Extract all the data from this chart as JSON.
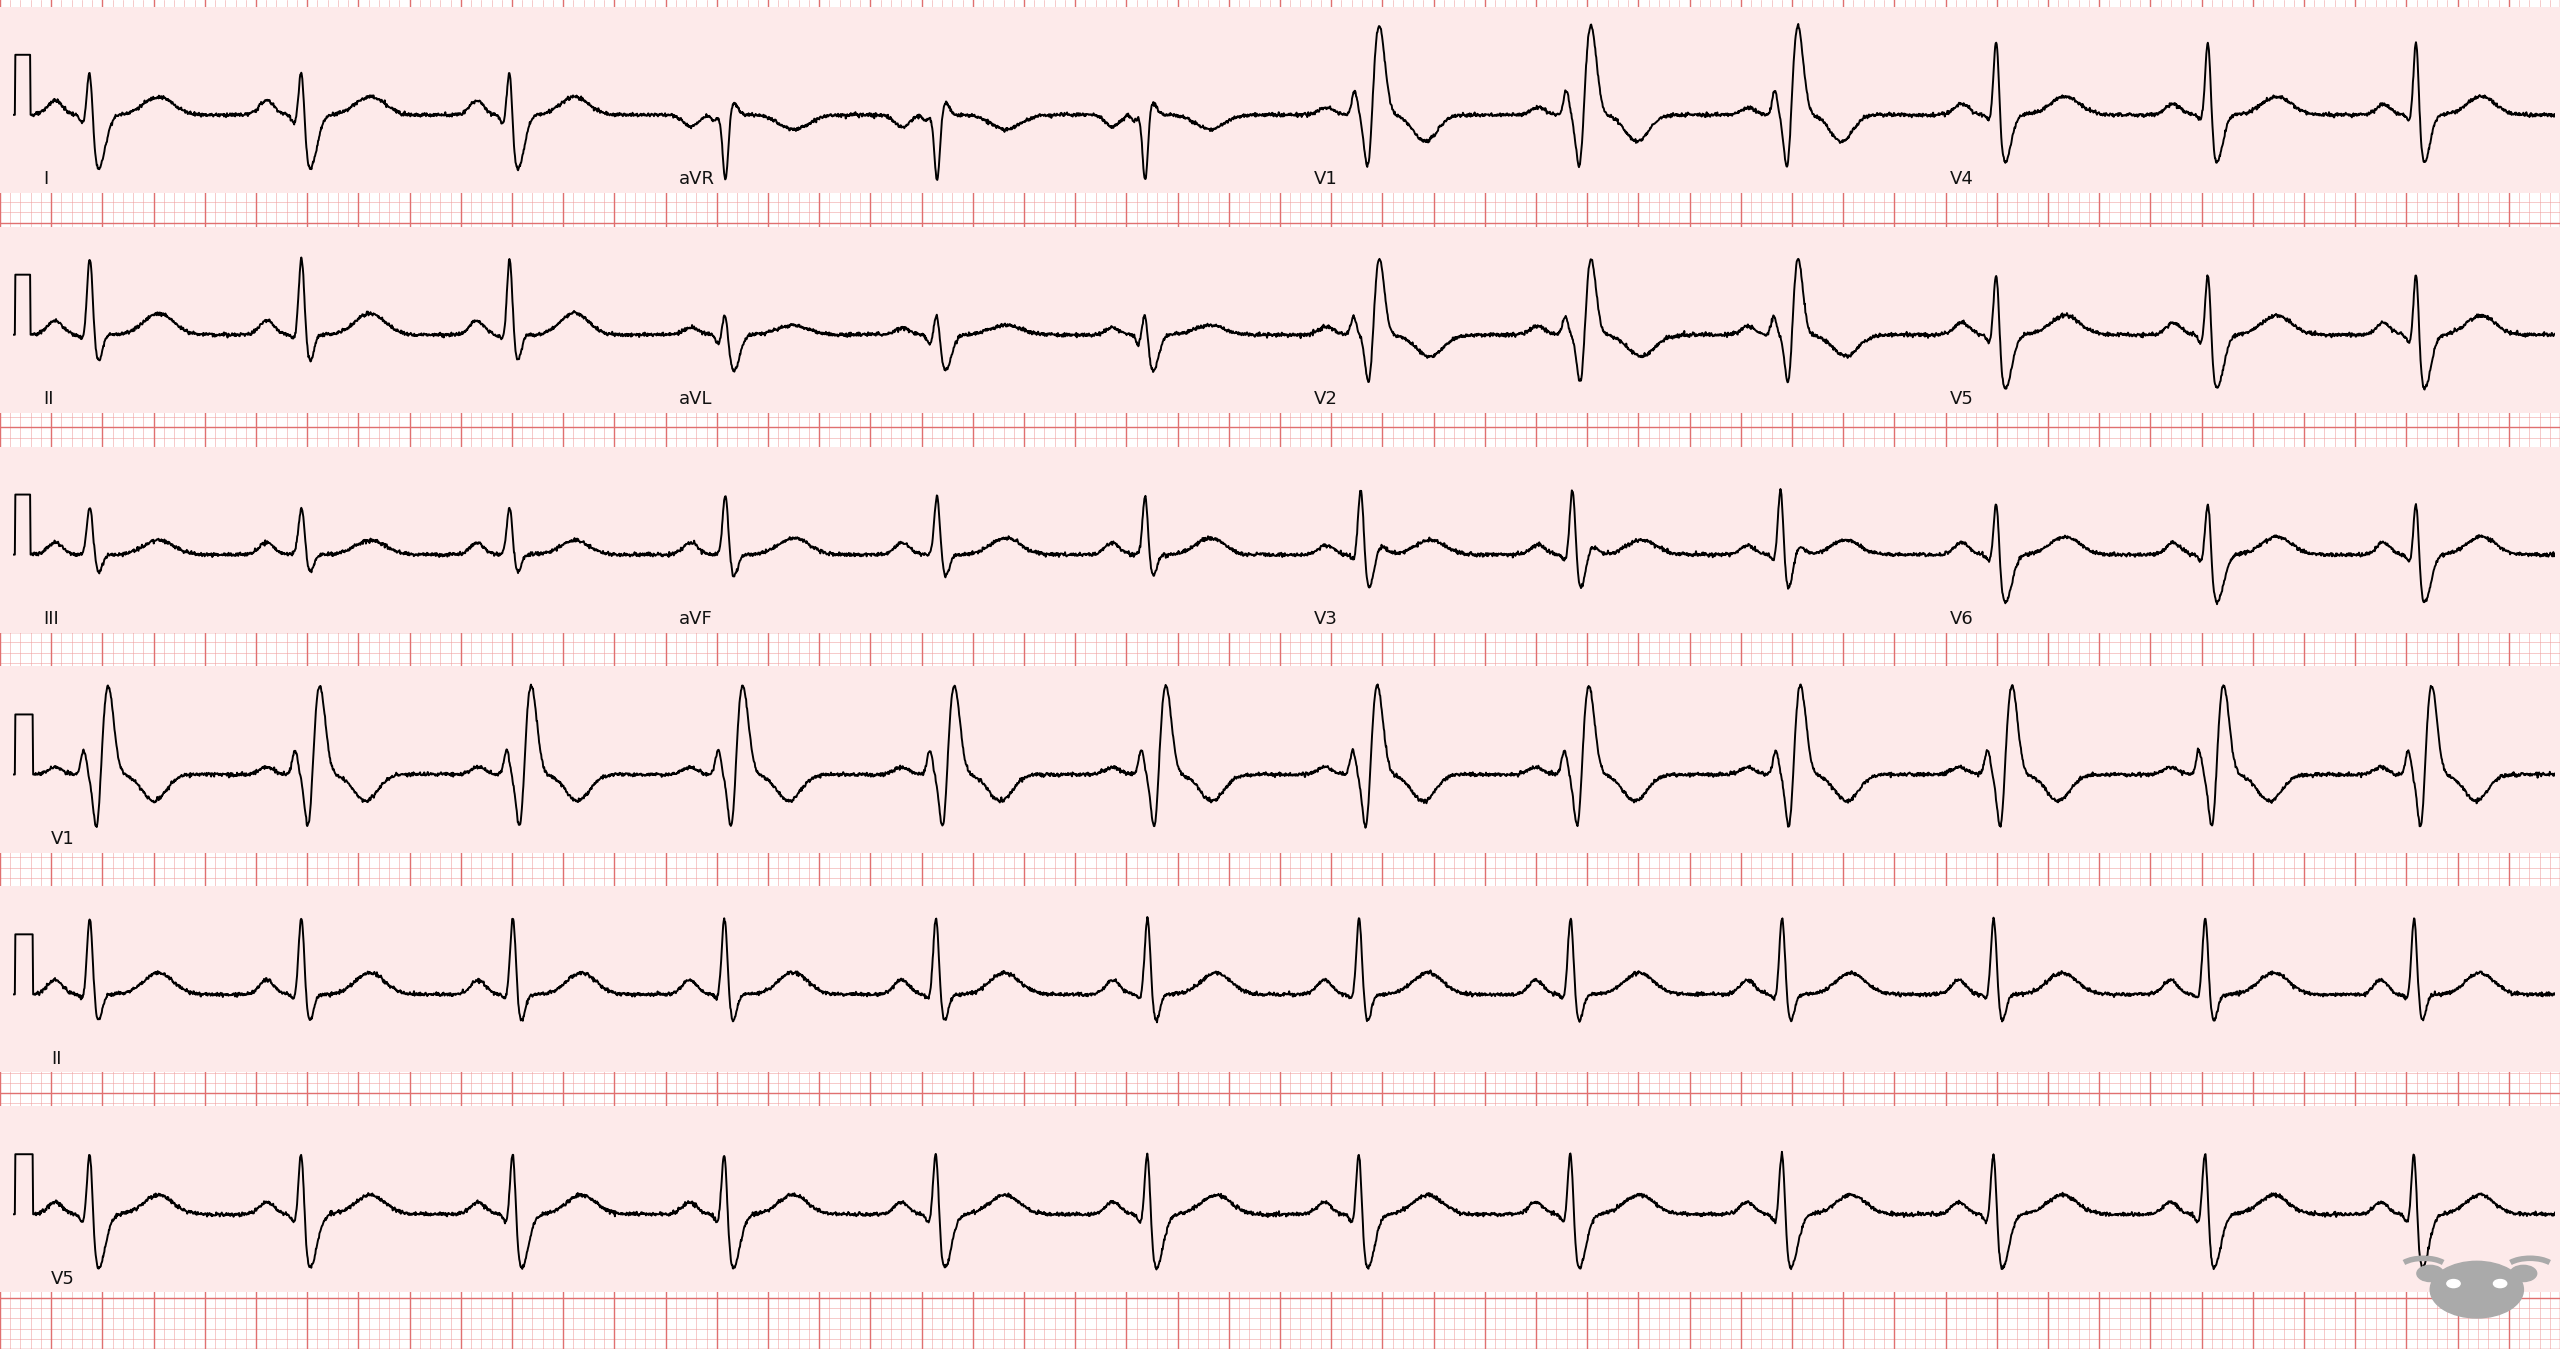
{
  "bg_color": "#FFFFFF",
  "band_color": "#FDEAEA",
  "grid_minor_color": "#F0A0A0",
  "grid_major_color": "#E07070",
  "ecg_color": "#000000",
  "ecg_linewidth": 1.4,
  "fig_width": 25.6,
  "fig_height": 13.49,
  "dpi": 100,
  "n_rows": 6,
  "lead_labels_row0": [
    "I",
    "aVR",
    "V1",
    "V4"
  ],
  "lead_labels_row1": [
    "II",
    "aVL",
    "V2",
    "V5"
  ],
  "lead_labels_row2": [
    "III",
    "aVF",
    "V3",
    "V6"
  ],
  "lead_labels_row3": [
    "V1"
  ],
  "lead_labels_row4": [
    "II"
  ],
  "lead_labels_row5": [
    "V5"
  ],
  "sample_rate": 500,
  "duration": 10.0,
  "heart_rate": 72,
  "label_fontsize": 13,
  "label_color": "#111111"
}
